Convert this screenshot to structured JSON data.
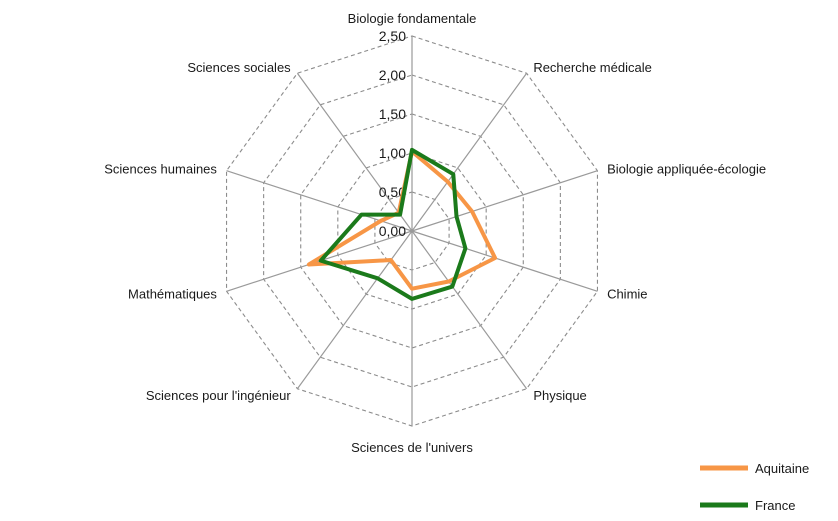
{
  "chart_data": {
    "type": "radar",
    "categories": [
      "Biologie fondamentale",
      "Recherche médicale",
      "Biologie appliquée-écologie",
      "Chimie",
      "Physique",
      "Sciences de l'univers",
      "Sciences pour l'ingénieur",
      "Mathématiques",
      "Sciences humaines",
      "Sciences sociales"
    ],
    "rlim": [
      0,
      2.5
    ],
    "ticks": [
      "0,00",
      "0,50",
      "1,00",
      "1,50",
      "2,00",
      "2,50"
    ],
    "grid": true,
    "legend_position": "bottom-right",
    "series": [
      {
        "name": "Aquitaine",
        "color": "#f79646",
        "values": [
          1.02,
          0.78,
          0.81,
          1.12,
          0.8,
          0.74,
          0.46,
          1.39,
          0.42,
          0.29
        ]
      },
      {
        "name": "France",
        "color": "#1b7a1b",
        "values": [
          1.04,
          0.9,
          0.6,
          0.72,
          0.88,
          0.87,
          0.75,
          1.23,
          0.68,
          0.26
        ]
      }
    ]
  }
}
